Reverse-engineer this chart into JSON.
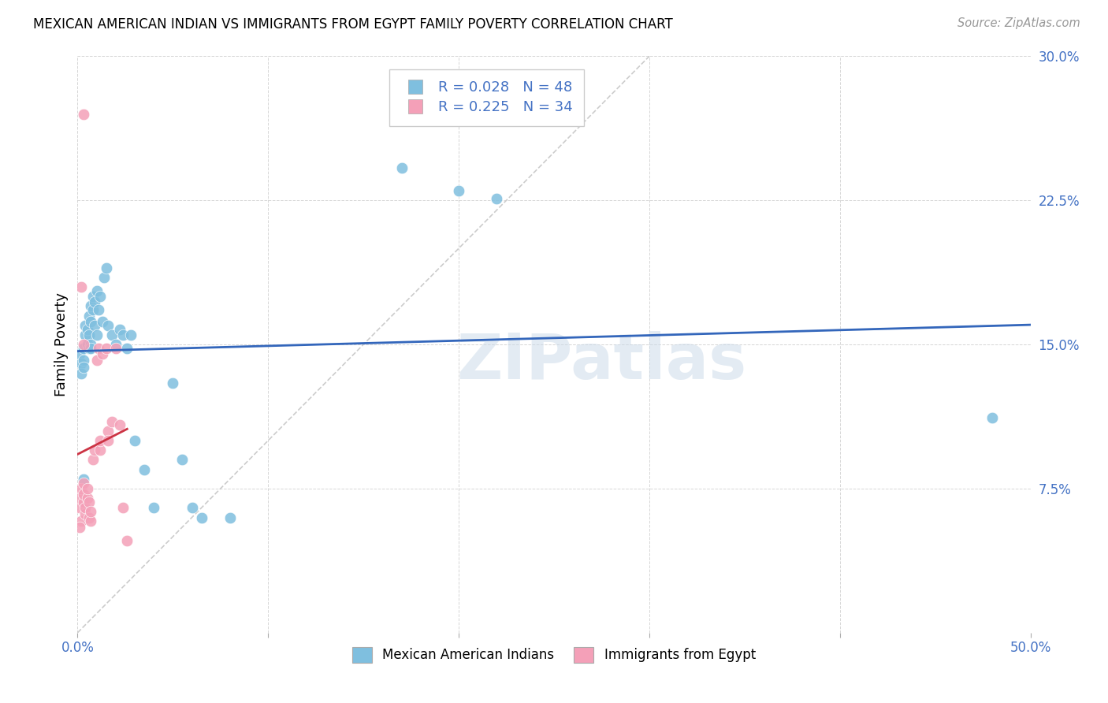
{
  "title": "MEXICAN AMERICAN INDIAN VS IMMIGRANTS FROM EGYPT FAMILY POVERTY CORRELATION CHART",
  "source": "Source: ZipAtlas.com",
  "xlabel": "",
  "ylabel": "Family Poverty",
  "xlim": [
    0,
    0.5
  ],
  "ylim": [
    0,
    0.3
  ],
  "xticks": [
    0.0,
    0.1,
    0.2,
    0.3,
    0.4,
    0.5
  ],
  "xticklabels": [
    "0.0%",
    "",
    "",
    "",
    "",
    "50.0%"
  ],
  "yticks": [
    0.0,
    0.075,
    0.15,
    0.225,
    0.3
  ],
  "yticklabels": [
    "",
    "7.5%",
    "15.0%",
    "22.5%",
    "30.0%"
  ],
  "blue_R": 0.028,
  "blue_N": 48,
  "pink_R": 0.225,
  "pink_N": 34,
  "blue_color": "#7fbfdf",
  "pink_color": "#f4a0b8",
  "blue_line_color": "#3366bb",
  "pink_line_color": "#cc3344",
  "diag_color": "#cccccc",
  "watermark": "ZIPatlas",
  "legend_label_blue": "Mexican American Indians",
  "legend_label_pink": "Immigrants from Egypt",
  "blue_x": [
    0.001,
    0.002,
    0.002,
    0.003,
    0.003,
    0.003,
    0.004,
    0.004,
    0.005,
    0.005,
    0.006,
    0.006,
    0.006,
    0.007,
    0.007,
    0.007,
    0.008,
    0.008,
    0.009,
    0.009,
    0.01,
    0.01,
    0.011,
    0.012,
    0.013,
    0.014,
    0.015,
    0.016,
    0.018,
    0.02,
    0.022,
    0.024,
    0.026,
    0.028,
    0.03,
    0.035,
    0.04,
    0.05,
    0.055,
    0.06,
    0.065,
    0.08,
    0.17,
    0.2,
    0.22,
    0.48,
    0.003,
    0.007
  ],
  "blue_y": [
    0.145,
    0.14,
    0.135,
    0.148,
    0.142,
    0.138,
    0.155,
    0.16,
    0.158,
    0.15,
    0.165,
    0.155,
    0.148,
    0.17,
    0.162,
    0.15,
    0.175,
    0.168,
    0.172,
    0.16,
    0.178,
    0.155,
    0.168,
    0.175,
    0.162,
    0.185,
    0.19,
    0.16,
    0.155,
    0.15,
    0.158,
    0.155,
    0.148,
    0.155,
    0.1,
    0.085,
    0.065,
    0.13,
    0.09,
    0.065,
    0.06,
    0.06,
    0.242,
    0.23,
    0.226,
    0.112,
    0.08,
    0.148
  ],
  "pink_x": [
    0.001,
    0.001,
    0.002,
    0.002,
    0.003,
    0.003,
    0.003,
    0.004,
    0.004,
    0.005,
    0.005,
    0.006,
    0.006,
    0.007,
    0.007,
    0.008,
    0.009,
    0.01,
    0.011,
    0.012,
    0.012,
    0.013,
    0.015,
    0.016,
    0.016,
    0.018,
    0.02,
    0.022,
    0.024,
    0.026,
    0.002,
    0.003,
    0.003,
    0.001
  ],
  "pink_y": [
    0.065,
    0.07,
    0.058,
    0.075,
    0.068,
    0.072,
    0.078,
    0.062,
    0.065,
    0.07,
    0.075,
    0.06,
    0.068,
    0.058,
    0.063,
    0.09,
    0.095,
    0.142,
    0.148,
    0.095,
    0.1,
    0.145,
    0.148,
    0.105,
    0.1,
    0.11,
    0.148,
    0.108,
    0.065,
    0.048,
    0.18,
    0.27,
    0.15,
    0.055
  ]
}
